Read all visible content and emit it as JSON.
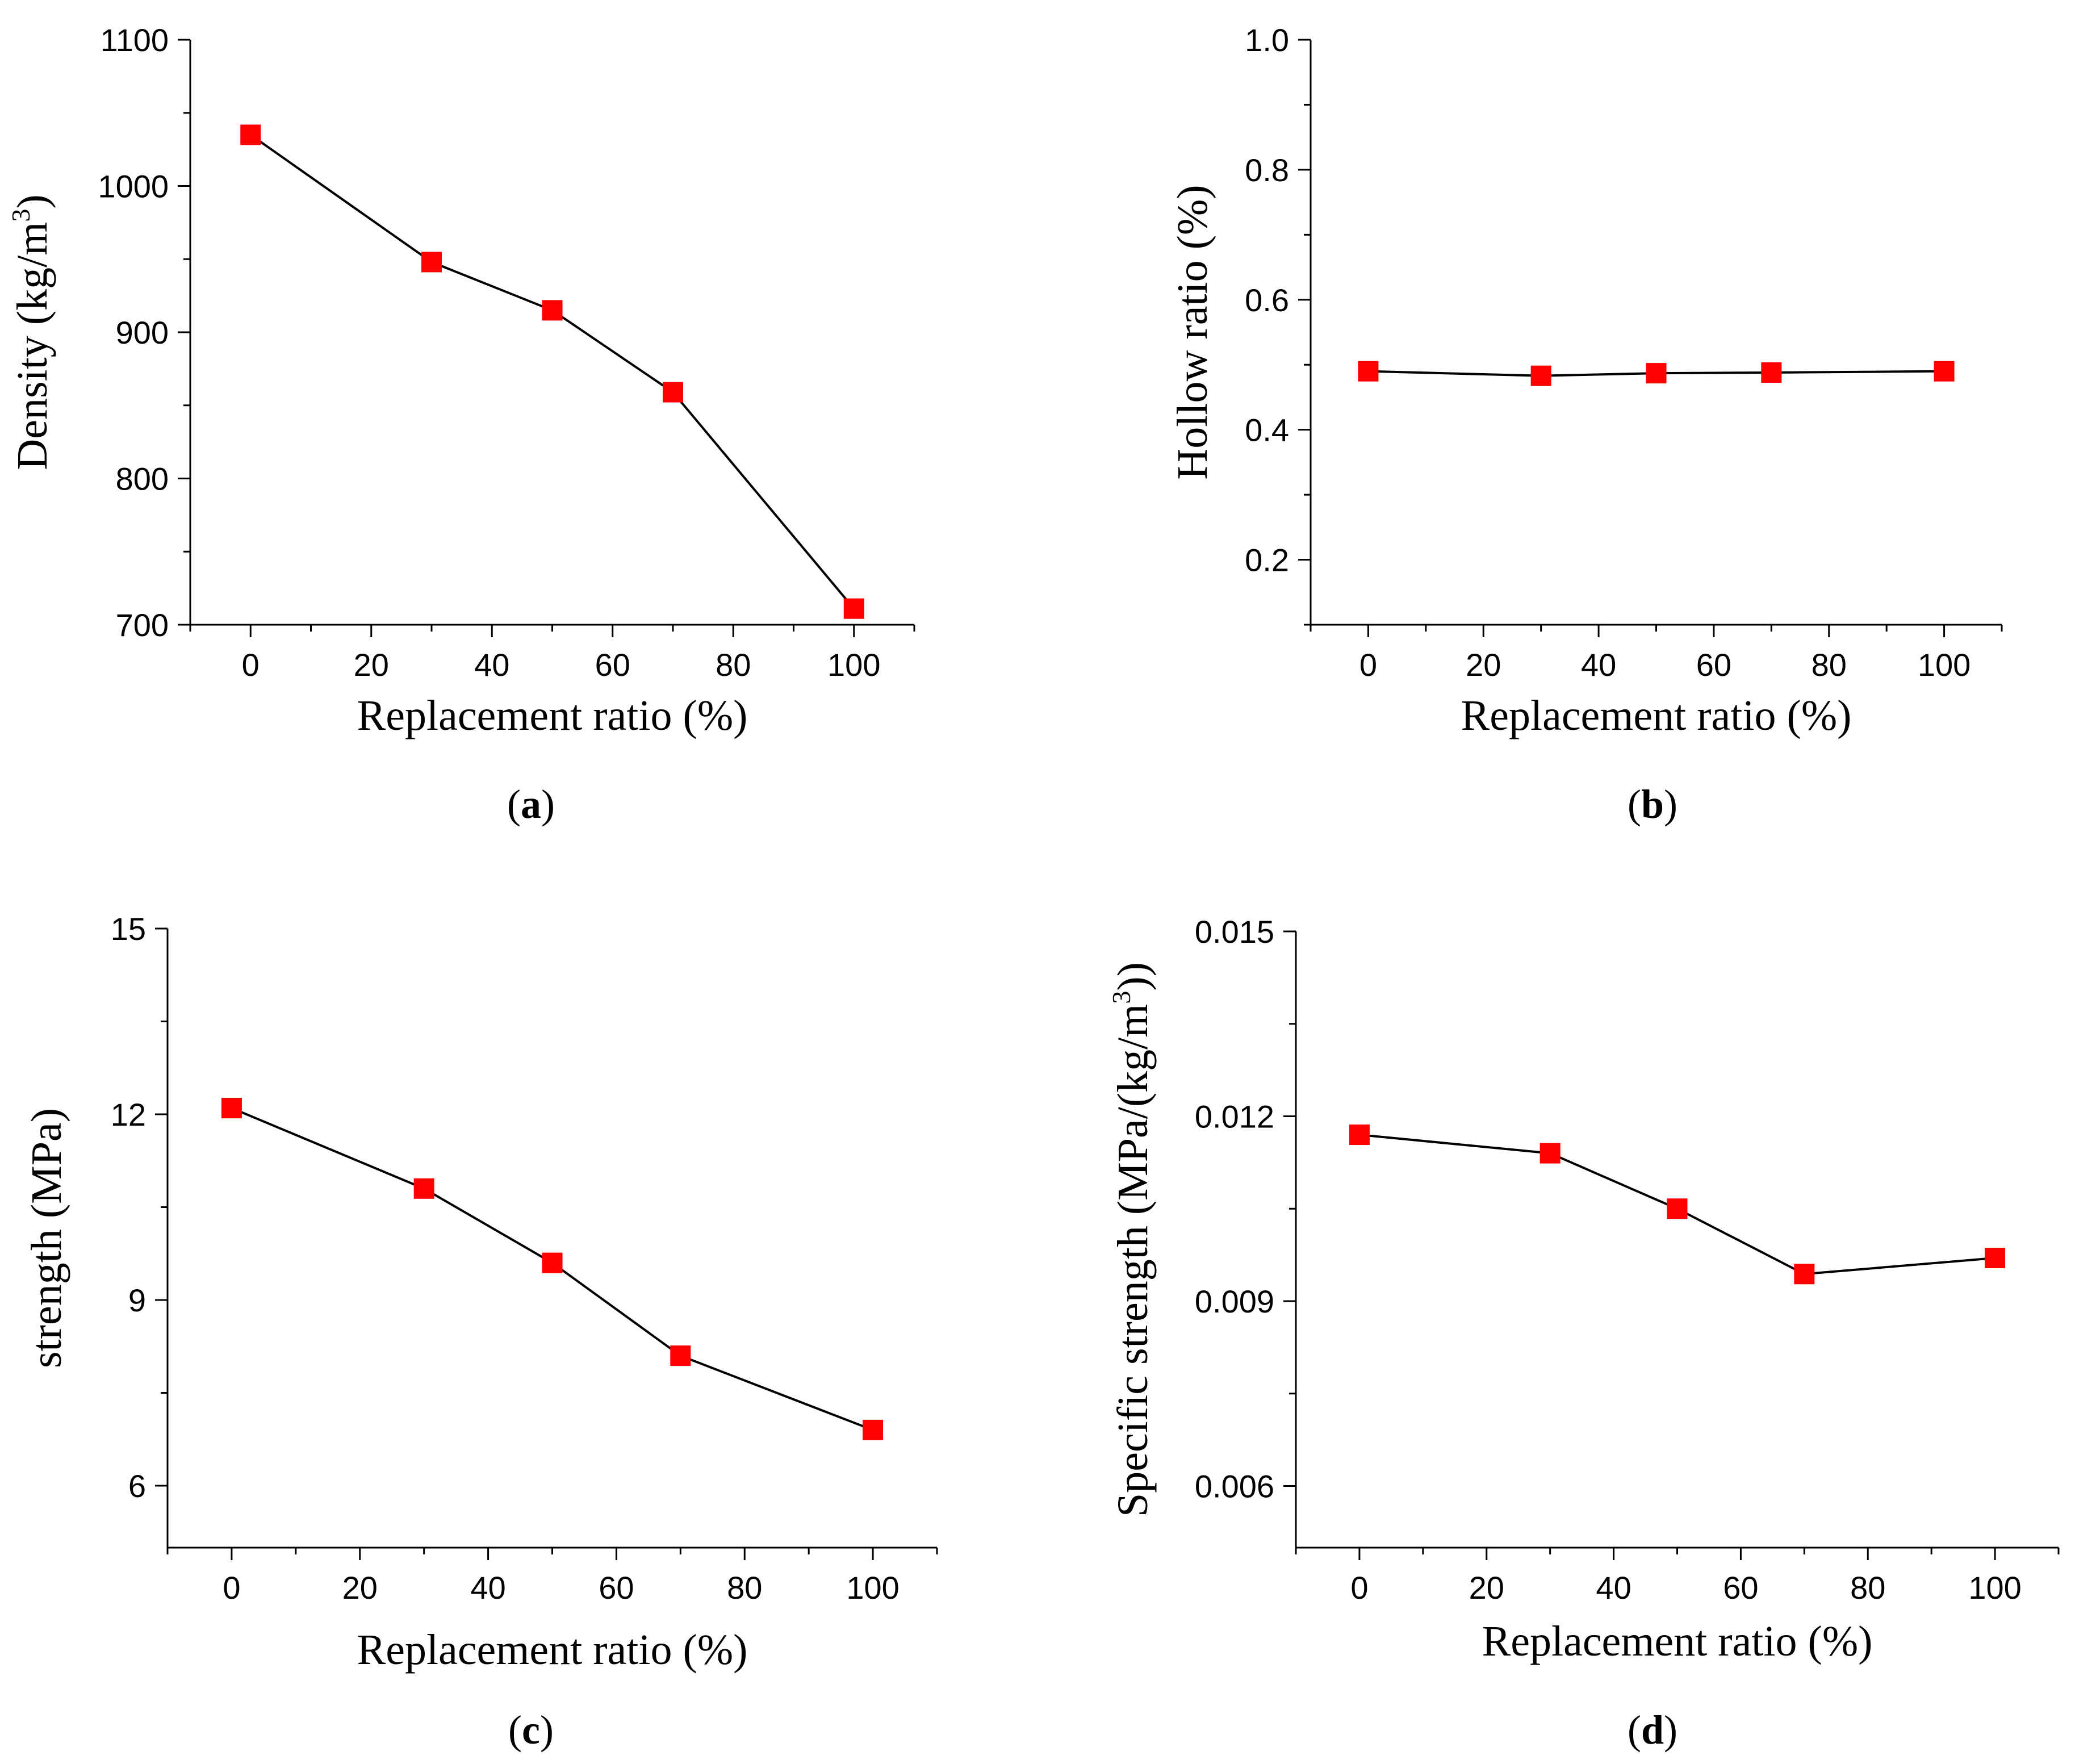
{
  "chart_data": [
    {
      "id": "a",
      "type": "line",
      "panel_label": "a",
      "xlabel": "Replacement ratio (%)",
      "ylabel_main": "Density (kg/m",
      "ylabel_sup": "3",
      "ylabel_tail": ")",
      "x": [
        0,
        30,
        50,
        70,
        100
      ],
      "y": [
        1035,
        948,
        915,
        859,
        711
      ],
      "xlim": [
        -10,
        110
      ],
      "ylim": [
        700,
        1100
      ],
      "x_ticks": [
        0,
        20,
        40,
        60,
        80,
        100
      ],
      "x_tick_labels": [
        "0",
        "20",
        "40",
        "60",
        "80",
        "100"
      ],
      "y_ticks": [
        700,
        800,
        900,
        1000,
        1100
      ],
      "y_tick_labels": [
        "700",
        "800",
        "900",
        "1000",
        "1100"
      ],
      "marker": "square",
      "marker_color": "#ff0000",
      "line_color": "#000000"
    },
    {
      "id": "b",
      "type": "line",
      "panel_label": "b",
      "xlabel": "Replacement ratio (%)",
      "ylabel_main": "Hollow ratio (%)",
      "ylabel_sup": "",
      "ylabel_tail": "",
      "x": [
        0,
        30,
        50,
        70,
        100
      ],
      "y": [
        0.49,
        0.483,
        0.487,
        0.488,
        0.49
      ],
      "xlim": [
        -10,
        110
      ],
      "ylim": [
        0.1,
        1.0
      ],
      "x_ticks": [
        0,
        20,
        40,
        60,
        80,
        100
      ],
      "x_tick_labels": [
        "0",
        "20",
        "40",
        "60",
        "80",
        "100"
      ],
      "y_ticks": [
        0.2,
        0.4,
        0.6,
        0.8,
        1.0
      ],
      "y_tick_labels": [
        "0.2",
        "0.4",
        "0.6",
        "0.8",
        "1.0"
      ],
      "marker": "square",
      "marker_color": "#ff0000",
      "line_color": "#000000"
    },
    {
      "id": "c",
      "type": "line",
      "panel_label": "c",
      "xlabel": "Replacement ratio (%)",
      "ylabel_main": "strength (MPa)",
      "ylabel_sup": "",
      "ylabel_tail": "",
      "x": [
        0,
        30,
        50,
        70,
        100
      ],
      "y": [
        12.1,
        10.8,
        9.6,
        8.1,
        6.9
      ],
      "xlim": [
        -10,
        110
      ],
      "ylim": [
        5,
        15
      ],
      "x_ticks": [
        0,
        20,
        40,
        60,
        80,
        100
      ],
      "x_tick_labels": [
        "0",
        "20",
        "40",
        "60",
        "80",
        "100"
      ],
      "y_ticks": [
        6,
        9,
        12,
        15
      ],
      "y_tick_labels": [
        "6",
        "9",
        "12",
        "15"
      ],
      "marker": "square",
      "marker_color": "#ff0000",
      "line_color": "#000000"
    },
    {
      "id": "d",
      "type": "line",
      "panel_label": "d",
      "xlabel": "Replacement ratio (%)",
      "ylabel_main": "Specific strength (MPa/(kg/m",
      "ylabel_sup": "3",
      "ylabel_tail": "))",
      "x": [
        0,
        30,
        50,
        70,
        100
      ],
      "y": [
        0.0117,
        0.0114,
        0.0105,
        0.00944,
        0.0097
      ],
      "xlim": [
        -10,
        110
      ],
      "ylim": [
        0.005,
        0.015
      ],
      "x_ticks": [
        0,
        20,
        40,
        60,
        80,
        100
      ],
      "x_tick_labels": [
        "0",
        "20",
        "40",
        "60",
        "80",
        "100"
      ],
      "y_ticks": [
        0.006,
        0.009,
        0.012,
        0.015
      ],
      "y_tick_labels": [
        "0.006",
        "0.009",
        "0.012",
        "0.015"
      ],
      "marker": "square",
      "marker_color": "#ff0000",
      "line_color": "#000000"
    }
  ]
}
